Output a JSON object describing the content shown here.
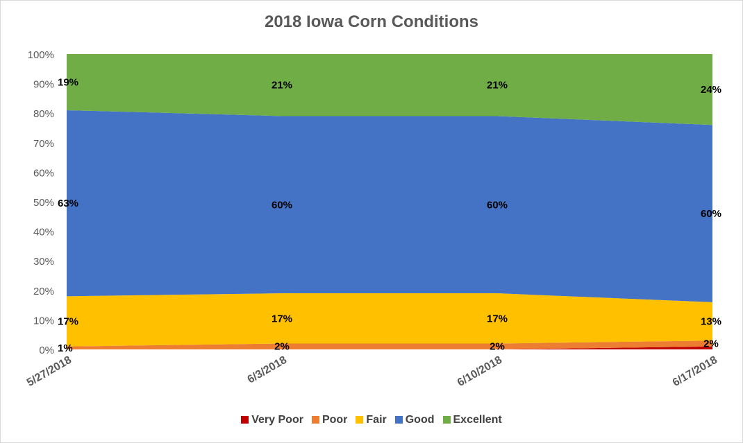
{
  "chart_data": {
    "type": "area",
    "stacked": true,
    "percent_stacked": true,
    "title": "2018 Iowa Corn Conditions",
    "xlabel": "",
    "ylabel": "",
    "ylim": [
      0,
      100
    ],
    "yticks": [
      "0%",
      "10%",
      "20%",
      "30%",
      "40%",
      "50%",
      "60%",
      "70%",
      "80%",
      "90%",
      "100%"
    ],
    "categories": [
      "5/27/2018",
      "6/3/2018",
      "6/10/2018",
      "6/17/2018"
    ],
    "legend_position": "bottom",
    "grid": false,
    "series": [
      {
        "name": "Very Poor",
        "color": "#c00000",
        "values": [
          0,
          0,
          0,
          1
        ],
        "labels": [
          "",
          "",
          "",
          ""
        ]
      },
      {
        "name": "Poor",
        "color": "#ed7d31",
        "values": [
          1,
          2,
          2,
          2
        ],
        "labels": [
          "1%",
          "2%",
          "2%",
          "2%"
        ]
      },
      {
        "name": "Fair",
        "color": "#ffc000",
        "values": [
          17,
          17,
          17,
          13
        ],
        "labels": [
          "17%",
          "17%",
          "17%",
          "13%"
        ]
      },
      {
        "name": "Good",
        "color": "#4472c4",
        "values": [
          63,
          60,
          60,
          60
        ],
        "labels": [
          "63%",
          "60%",
          "60%",
          "60%"
        ]
      },
      {
        "name": "Excellent",
        "color": "#70ad47",
        "values": [
          19,
          21,
          21,
          24
        ],
        "labels": [
          "19%",
          "21%",
          "21%",
          "24%"
        ]
      }
    ]
  }
}
